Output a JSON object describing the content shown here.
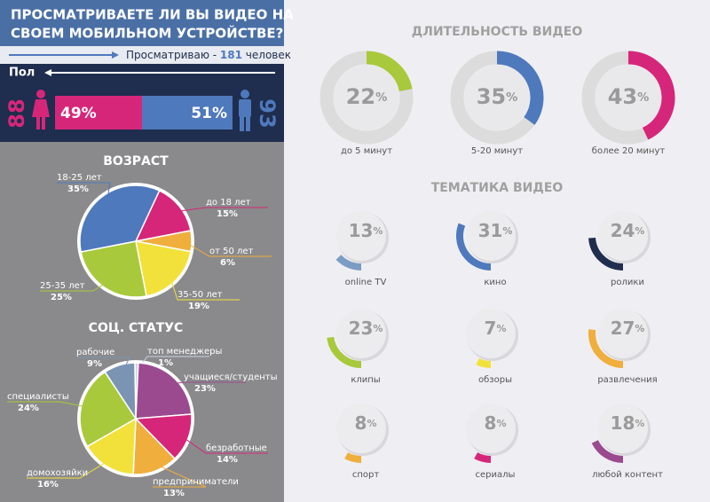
{
  "header": {
    "title": [
      "ПРОСМАТРИВАЕТЕ ЛИ ВЫ ВИДЕО НА",
      "СВОЕМ  МОБИЛЬНОМ  УСТРОЙСТВЕ?"
    ],
    "viewers_prefix": "Просматриваю -",
    "viewers": 181,
    "viewers_suffix": "человек"
  },
  "chart_data": [
    {
      "type": "gender",
      "title": "Пол",
      "counts": [
        88,
        93
      ],
      "values": [
        49,
        51
      ],
      "value_labels": [
        "49%",
        "51%"
      ],
      "colors": [
        "#d6267a",
        "#4f79bd"
      ]
    },
    {
      "type": "pie",
      "title": "ВОЗРАСТ",
      "categories": [
        "до 18 лет",
        "от 50 лет",
        "35-50 лет",
        "25-35 лет",
        "18-25 лет"
      ],
      "values": [
        15,
        6,
        19,
        25,
        35
      ],
      "value_labels": [
        "15%",
        "6%",
        "19%",
        "25%",
        "35%"
      ],
      "colors": [
        "#d6267a",
        "#f0ae3c",
        "#f2e13a",
        "#a8c93b",
        "#4f79bd"
      ]
    },
    {
      "type": "pie",
      "title": "СОЦ. СТАТУС",
      "categories": [
        "топ менеджеры",
        "учащиеся/студенты",
        "безработные",
        "предприниматели",
        "домохозяйки",
        "специалисты",
        "рабочие"
      ],
      "values": [
        1,
        23,
        14,
        13,
        16,
        24,
        9
      ],
      "value_labels": [
        "1%",
        "23%",
        "14%",
        "13%",
        "16%",
        "24%",
        "9%"
      ],
      "colors": [
        "#c9d3e3",
        "#9b4a8f",
        "#d6267a",
        "#f0ae3c",
        "#f2e13a",
        "#a8c93b",
        "#7b94b4"
      ]
    },
    {
      "type": "ring",
      "title": "ДЛИТЕЛЬНОСТЬ ВИДЕО",
      "unit": "%",
      "categories": [
        "до 5 минут",
        "5-20 минут",
        "более 20 минут"
      ],
      "values": [
        22,
        35,
        43
      ],
      "colors": [
        "#a8c93b",
        "#4f79bd",
        "#d6267a"
      ]
    },
    {
      "type": "arc",
      "title": "ТЕМАТИКА ВИДЕО",
      "unit": "%",
      "categories": [
        "online TV",
        "кино",
        "ролики",
        "клипы",
        "обзоры",
        "развлечения",
        "спорт",
        "сериалы",
        "любой контент"
      ],
      "values": [
        13,
        31,
        24,
        23,
        7,
        27,
        8,
        8,
        18
      ],
      "colors": [
        "#7b9cc4",
        "#4f79bd",
        "#1f2d4e",
        "#a8c93b",
        "#f2e13a",
        "#f0ae3c",
        "#f0ae3c",
        "#d6267a",
        "#9b4a8f"
      ]
    }
  ]
}
